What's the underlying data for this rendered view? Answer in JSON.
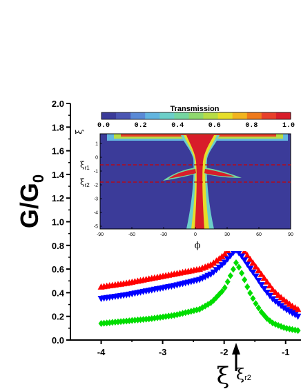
{
  "chart_data": [
    {
      "type": "scatter",
      "ylabel_main": "G/G",
      "ylabel_sub": "0",
      "xlabel": "ξ",
      "xlim": [
        -4.5,
        -0.75
      ],
      "ylim": [
        0.0,
        2.0
      ],
      "xticks": [
        "-4",
        "-3",
        "-2",
        "-1"
      ],
      "yticks": [
        "0.0",
        "0.2",
        "0.4",
        "0.6",
        "0.8",
        "1.0",
        "1.2",
        "1.4",
        "1.6",
        "1.8",
        "2.0"
      ],
      "arrow_label_main": "ξ",
      "arrow_label_sub": "r2",
      "arrow_x": -1.8,
      "series": [
        {
          "color": "#ff0000",
          "marker": "triangle-up",
          "x": [
            -4.0,
            -3.6,
            -3.2,
            -2.8,
            -2.4,
            -2.2,
            -2.0,
            -1.9,
            -1.85,
            -1.8,
            -1.7,
            -1.6,
            -1.5,
            -1.4,
            -1.3,
            -1.2,
            -1.1,
            -1.0,
            -0.9,
            -0.8
          ],
          "y": [
            0.45,
            0.48,
            0.52,
            0.56,
            0.6,
            0.64,
            0.72,
            0.78,
            0.81,
            0.84,
            0.77,
            0.7,
            0.63,
            0.56,
            0.49,
            0.42,
            0.37,
            0.33,
            0.29,
            0.26
          ]
        },
        {
          "color": "#0000ff",
          "marker": "triangle-down",
          "x": [
            -4.0,
            -3.6,
            -3.2,
            -2.8,
            -2.4,
            -2.2,
            -2.0,
            -1.9,
            -1.85,
            -1.8,
            -1.7,
            -1.6,
            -1.5,
            -1.4,
            -1.3,
            -1.2,
            -1.1,
            -1.0,
            -0.9,
            -0.8
          ],
          "y": [
            0.35,
            0.38,
            0.42,
            0.46,
            0.51,
            0.56,
            0.65,
            0.71,
            0.74,
            0.76,
            0.7,
            0.62,
            0.55,
            0.47,
            0.4,
            0.34,
            0.3,
            0.26,
            0.23,
            0.2
          ]
        },
        {
          "color": "#00dd00",
          "marker": "diamond",
          "x": [
            -4.0,
            -3.6,
            -3.2,
            -2.8,
            -2.4,
            -2.2,
            -2.0,
            -1.9,
            -1.85,
            -1.8,
            -1.7,
            -1.6,
            -1.5,
            -1.4,
            -1.3,
            -1.2,
            -1.1,
            -1.0,
            -0.9,
            -0.8
          ],
          "y": [
            0.14,
            0.16,
            0.18,
            0.21,
            0.26,
            0.32,
            0.43,
            0.54,
            0.6,
            0.66,
            0.55,
            0.42,
            0.32,
            0.24,
            0.18,
            0.14,
            0.12,
            0.1,
            0.09,
            0.08
          ]
        }
      ]
    },
    {
      "type": "heatmap",
      "title": "Transmission",
      "colorbar_ticks": [
        "0.0",
        "0.2",
        "0.4",
        "0.6",
        "0.8",
        "1.0"
      ],
      "colorbar_colors": [
        "#3b3b99",
        "#4b56b3",
        "#5a8ad6",
        "#62b5e0",
        "#6ccfc9",
        "#75d6a0",
        "#8fd86e",
        "#b7dc45",
        "#e6de2a",
        "#f2b41e",
        "#ef7a1b",
        "#e8402a",
        "#d81d2a"
      ],
      "xlabel": "ϕ",
      "ylabel": "ξ",
      "xlim": [
        -90,
        90
      ],
      "ylim": [
        -5.2,
        1.7
      ],
      "xticks": [
        "-90",
        "-60",
        "-30",
        "0",
        "30",
        "60",
        "90"
      ],
      "yticks": [
        "1",
        "0",
        "-1",
        "-2",
        "-3",
        "-4",
        "-5"
      ],
      "ref_lines": [
        {
          "xi": -0.55,
          "label_main": "ξ",
          "label_sub": "r1"
        },
        {
          "xi": -1.8,
          "label_main": "ξ",
          "label_sub": "r2"
        }
      ]
    }
  ]
}
